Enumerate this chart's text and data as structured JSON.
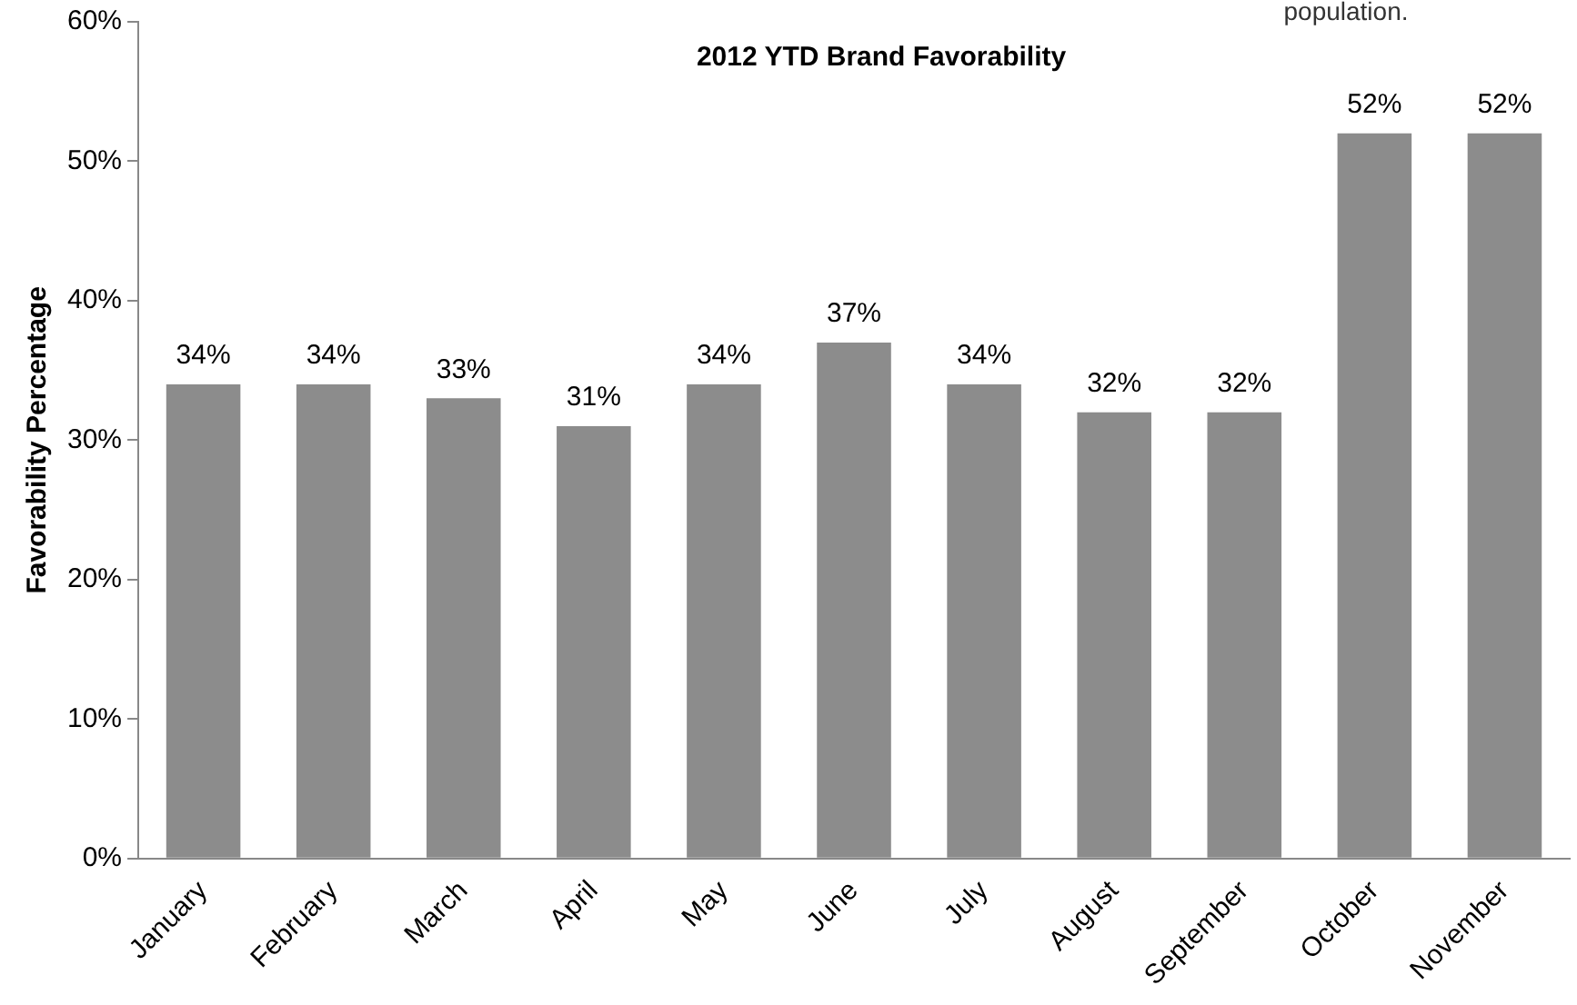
{
  "chart_data": {
    "type": "bar",
    "title": "2012 YTD Brand Favorability",
    "ylabel": "Favorability Percentage",
    "annotations": [
      "population."
    ],
    "categories": [
      "January",
      "February",
      "March",
      "April",
      "May",
      "June",
      "July",
      "August",
      "September",
      "October",
      "November"
    ],
    "values": [
      34,
      34,
      33,
      31,
      34,
      37,
      34,
      32,
      32,
      52,
      52
    ],
    "value_labels": [
      "34%",
      "34%",
      "33%",
      "31%",
      "34%",
      "37%",
      "34%",
      "32%",
      "32%",
      "52%",
      "52%"
    ],
    "color": "#8c8c8c",
    "ylim": [
      0,
      60
    ],
    "yticks": [
      {
        "value": 0,
        "label": "0%"
      },
      {
        "value": 10,
        "label": "10%"
      },
      {
        "value": 20,
        "label": "20%"
      },
      {
        "value": 30,
        "label": "30%"
      },
      {
        "value": 40,
        "label": "40%"
      },
      {
        "value": 50,
        "label": "50%"
      },
      {
        "value": 60,
        "label": "60%"
      }
    ],
    "grid": false,
    "legend": false
  }
}
